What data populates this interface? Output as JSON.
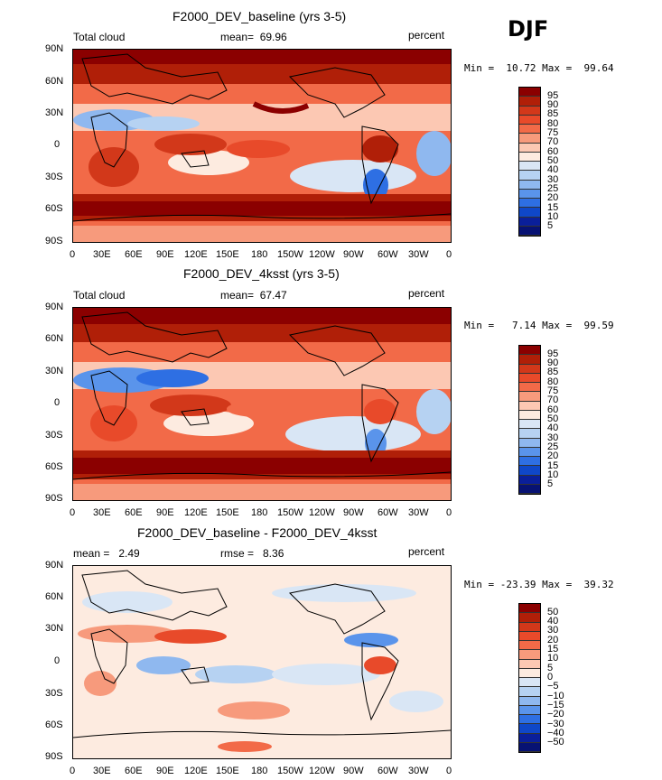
{
  "season": "DJF",
  "panels": [
    {
      "title": "F2000_DEV_baseline (yrs 3-5)",
      "left_label": "Total cloud",
      "center_label": "mean=  69.96",
      "units": "percent",
      "minmax": "Min =  10.72 Max =  99.64",
      "legend": [
        "95",
        "90",
        "85",
        "80",
        "75",
        "70",
        "60",
        "50",
        "40",
        "30",
        "25",
        "20",
        "15",
        "10",
        "5"
      ],
      "colors": [
        "#8b0000",
        "#b01f08",
        "#d2381a",
        "#e84a2a",
        "#f26a48",
        "#f79a7c",
        "#fcc8b3",
        "#fdebe0",
        "#d9e6f5",
        "#b6d2f2",
        "#8fb8ef",
        "#5a94eb",
        "#2e6fe3",
        "#0f47c8",
        "#0a1f9a",
        "#071273"
      ]
    },
    {
      "title": "F2000_DEV_4ksst (yrs 3-5)",
      "left_label": "Total cloud",
      "center_label": "mean=  67.47",
      "units": "percent",
      "minmax": "Min =   7.14 Max =  99.59",
      "legend": [
        "95",
        "90",
        "85",
        "80",
        "75",
        "70",
        "60",
        "50",
        "40",
        "30",
        "25",
        "20",
        "15",
        "10",
        "5"
      ],
      "colors": [
        "#8b0000",
        "#b01f08",
        "#d2381a",
        "#e84a2a",
        "#f26a48",
        "#f79a7c",
        "#fcc8b3",
        "#fdebe0",
        "#d9e6f5",
        "#b6d2f2",
        "#8fb8ef",
        "#5a94eb",
        "#2e6fe3",
        "#0f47c8",
        "#0a1f9a",
        "#071273"
      ]
    },
    {
      "title": "F2000_DEV_baseline - F2000_DEV_4ksst",
      "left_label": "mean =   2.49",
      "center_label": "rmse =   8.36",
      "units": "percent",
      "minmax": "Min = -23.39 Max =  39.32",
      "legend": [
        "50",
        "40",
        "30",
        "20",
        "15",
        "10",
        "5",
        "0",
        "−5",
        "−10",
        "−15",
        "−20",
        "−30",
        "−40",
        "−50"
      ],
      "colors": [
        "#8b0000",
        "#b01f08",
        "#d2381a",
        "#e84a2a",
        "#f26a48",
        "#f79a7c",
        "#fcc8b3",
        "#fdebe0",
        "#d9e6f5",
        "#b6d2f2",
        "#8fb8ef",
        "#5a94eb",
        "#2e6fe3",
        "#0f47c8",
        "#0a1f9a",
        "#071273"
      ]
    }
  ],
  "lat_ticks": [
    "90N",
    "60N",
    "30N",
    "0",
    "30S",
    "60S",
    "90S"
  ],
  "lon_ticks": [
    "0",
    "30E",
    "60E",
    "90E",
    "120E",
    "150E",
    "180",
    "150W",
    "120W",
    "90W",
    "60W",
    "30W",
    "0"
  ]
}
